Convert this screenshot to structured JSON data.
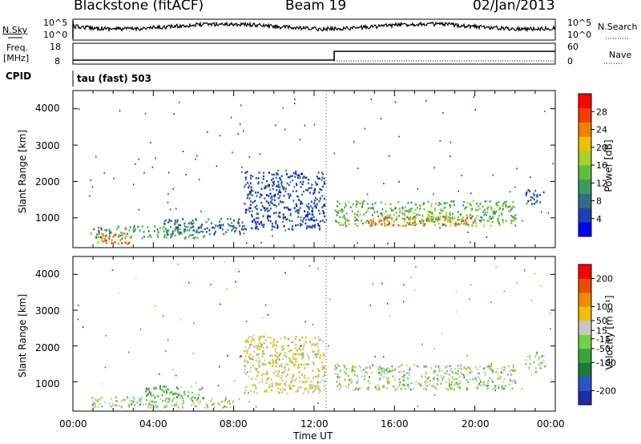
{
  "header": {
    "station": "Blackstone (fitACF)",
    "beam": "Beam 19",
    "date": "02/Jan/2013"
  },
  "strip": {
    "nsky_label": "N.Sky",
    "nsearch_label": "N.Search",
    "left_ticks": [
      "10^5",
      "10^0"
    ],
    "right_ticks": [
      "10^5",
      "10^0"
    ],
    "freq_label": "Freq.",
    "freq_unit": "[MHz]",
    "freq_ticks": [
      "18",
      "8"
    ],
    "nave_label": "Nave",
    "nave_ticks": [
      "60",
      "0"
    ],
    "cpid_label": "CPID",
    "cpid_text": "tau (fast) 503"
  },
  "time_axis": {
    "label": "Time UT",
    "ticks": [
      "00:00",
      "04:00",
      "08:00",
      "12:00",
      "16:00",
      "20:00",
      "00:00"
    ]
  },
  "panels": {
    "power": {
      "ylabel": "Slant Range [km]",
      "yticks": [
        "4000",
        "3000",
        "2000",
        "1000"
      ],
      "colorbar_label": "Power [dB]",
      "colorbar_ticks": [
        "28",
        "24",
        "20",
        "16",
        "12",
        "8",
        "4"
      ],
      "colors": [
        "#0000ff",
        "#1f3fb5",
        "#2e6e88",
        "#3d9a5e",
        "#5fbf3c",
        "#a6d22c",
        "#f0c000",
        "#f08000",
        "#f04000",
        "#ff0000"
      ]
    },
    "velocity": {
      "ylabel": "Slant Range [km]",
      "yticks": [
        "4000",
        "3000",
        "2000",
        "1000"
      ],
      "colorbar_label": "Velocity [m s⁻¹]",
      "colorbar_ticks": [
        "200",
        "100",
        "50",
        "15",
        "-15",
        "-50",
        "-100",
        "-200"
      ],
      "colors": [
        "#1a2ea8",
        "#2a55c8",
        "#1f7a3a",
        "#3aa53a",
        "#6fd24a",
        "#c8c8c0",
        "#f0c000",
        "#f08a00",
        "#f04a00",
        "#ff0000"
      ]
    }
  },
  "chart_data": [
    {
      "type": "heatmap",
      "title": "Power",
      "xlabel": "Time UT",
      "ylabel": "Slant Range [km]",
      "xlim": [
        "00:00",
        "24:00"
      ],
      "ylim": [
        180,
        4500
      ],
      "colorbar": {
        "label": "Power [dB]",
        "range": [
          0,
          32
        ],
        "ticks": [
          4,
          8,
          12,
          16,
          20,
          24,
          28
        ]
      },
      "regions": [
        {
          "t": [
            0.8,
            2.8
          ],
          "range_km": [
            300,
            600
          ],
          "value_db": 24
        },
        {
          "t": [
            1.0,
            6.5
          ],
          "range_km": [
            450,
            800
          ],
          "value_db": 12
        },
        {
          "t": [
            4.5,
            8.5
          ],
          "range_km": [
            550,
            1000
          ],
          "value_db": 8
        },
        {
          "t": [
            8.5,
            12.5
          ],
          "range_km": [
            700,
            2300
          ],
          "value_db": 6
        },
        {
          "t": [
            13.0,
            22.0
          ],
          "range_km": [
            800,
            1500
          ],
          "value_db": 14
        },
        {
          "t": [
            14.5,
            20.0
          ],
          "range_km": [
            800,
            1050
          ],
          "value_db": 24
        },
        {
          "t": [
            22.5,
            23.5
          ],
          "range_km": [
            1400,
            1800
          ],
          "value_db": 6
        }
      ]
    },
    {
      "type": "heatmap",
      "title": "Velocity",
      "xlabel": "Time UT",
      "ylabel": "Slant Range [km]",
      "xlim": [
        "00:00",
        "24:00"
      ],
      "ylim": [
        180,
        4500
      ],
      "colorbar": {
        "label": "Velocity [m s-1]",
        "range": [
          -250,
          250
        ],
        "ticks": [
          -200,
          -100,
          -50,
          -15,
          15,
          50,
          100,
          200
        ]
      },
      "regions": [
        {
          "t": [
            0.8,
            8.0
          ],
          "range_km": [
            300,
            600
          ],
          "value_ms": 0
        },
        {
          "t": [
            3.5,
            6.5
          ],
          "range_km": [
            550,
            900
          ],
          "value_ms": -60
        },
        {
          "t": [
            8.5,
            12.5
          ],
          "range_km": [
            700,
            2300
          ],
          "value_ms": 40
        },
        {
          "t": [
            13.0,
            22.0
          ],
          "range_km": [
            800,
            1500
          ],
          "value_ms": 0
        },
        {
          "t": [
            22.5,
            23.5
          ],
          "range_km": [
            1400,
            1800
          ],
          "value_ms": 0
        }
      ]
    }
  ]
}
